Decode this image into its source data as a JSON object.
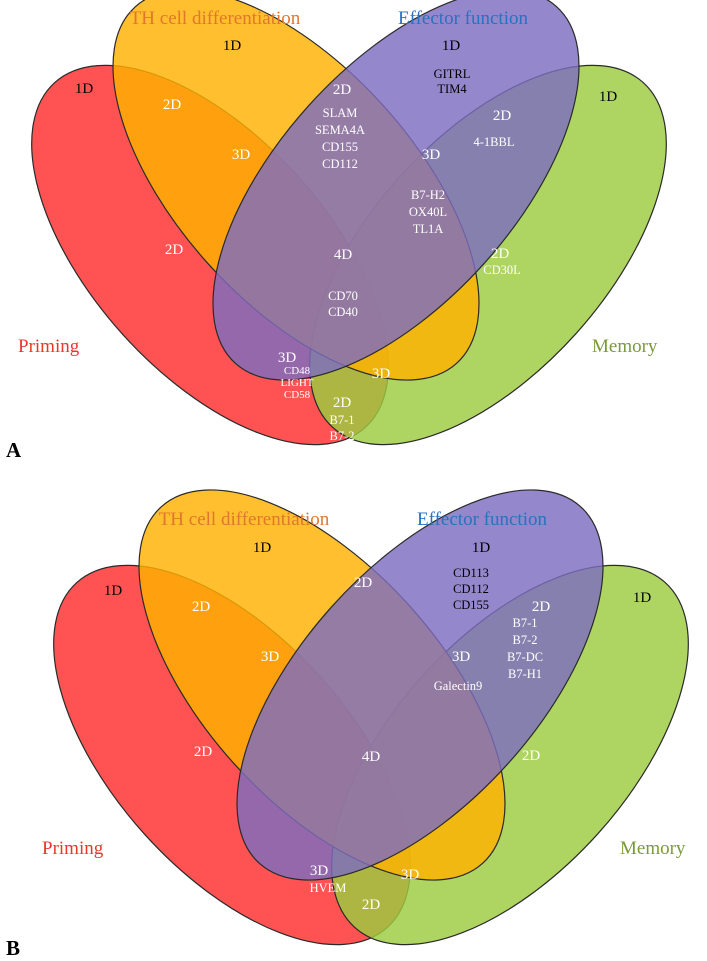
{
  "colors": {
    "priming": "#ff2d2d",
    "th": "#ffb100",
    "effector": "#7e6cc0",
    "memory": "#9ccc40",
    "stroke": "#2a2a2a",
    "title_priming": "#e8372b",
    "title_th": "#e0772d",
    "title_effector": "#2872c0",
    "title_memory": "#7a9a3a",
    "text_dark": "#000000",
    "text_light": "#ffffff",
    "text_pale": "#e6f0e6"
  },
  "panels": [
    {
      "label": "A",
      "titles": {
        "th": "TH cell differentiation",
        "effector": "Effector function",
        "priming": "Priming",
        "memory": "Memory"
      },
      "regions": {
        "priming_1d": "1D",
        "th_1d": "1D",
        "effector_1d": "1D",
        "memory_1d": "1D",
        "pt_2d": "2D",
        "te_2d": "2D",
        "em_2d": "2D",
        "pe_2d": "2D",
        "tm_2d": "2D",
        "pm_2d": "2D",
        "pte_3d": "3D",
        "tem_3d": "3D",
        "pem_3d": "3D",
        "ptm_3d": "3D",
        "all_4d": "4D"
      },
      "genes": {
        "effector_1d": [
          "GITRL",
          "TIM4"
        ],
        "te_2d": [
          "SLAM",
          "SEMA4A",
          "CD155",
          "CD112"
        ],
        "em_2d": [
          "4-1BBL"
        ],
        "tem_3d": [
          "B7-H2",
          "OX40L",
          "TL1A"
        ],
        "tm_2d": [
          "CD30L"
        ],
        "all_4d": [
          "CD70",
          "CD40"
        ],
        "pem_3d": [
          "CD48",
          "LIGHT",
          "CD58"
        ],
        "pm_2d": [
          "B7-1",
          "B7-2"
        ]
      }
    },
    {
      "label": "B",
      "titles": {
        "th": "TH cell differentiation",
        "effector": "Effector function",
        "priming": "Priming",
        "memory": "Memory"
      },
      "regions": {
        "priming_1d": "1D",
        "th_1d": "1D",
        "effector_1d": "1D",
        "memory_1d": "1D",
        "pt_2d": "2D",
        "te_2d": "2D",
        "em_2d": "2D",
        "pe_2d": "2D",
        "tm_2d": "2D",
        "pm_2d": "2D",
        "pte_3d": "3D",
        "tem_3d": "3D",
        "pem_3d": "3D",
        "ptm_3d": "3D",
        "all_4d": "4D"
      },
      "genes": {
        "effector_1d": [
          "CD113",
          "CD112",
          "CD155"
        ],
        "em_2d": [
          "B7-1",
          "B7-2",
          "B7-DC",
          "B7-H1"
        ],
        "tem_3d": [
          "Galectin9"
        ],
        "pem_3d": [
          "HVEM"
        ]
      }
    }
  ]
}
